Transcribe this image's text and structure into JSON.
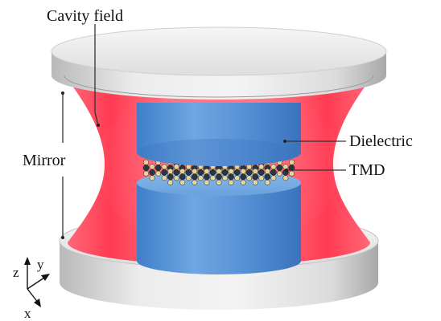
{
  "labels": {
    "cavity_field": "Cavity field",
    "mirror": "Mirror",
    "dielectric": "Dielectric",
    "tmd": "TMD"
  },
  "axes": {
    "z": "z",
    "y": "y",
    "x": "x"
  },
  "colors": {
    "mirror": "#d8d8d8",
    "mirror_shadow": "#9a9a9a",
    "cavity_field": "#ff4a5f",
    "dielectric": "#5c97d6",
    "tmd_metal": "#2c3440",
    "tmd_chalcogen": "#e6d49a"
  }
}
